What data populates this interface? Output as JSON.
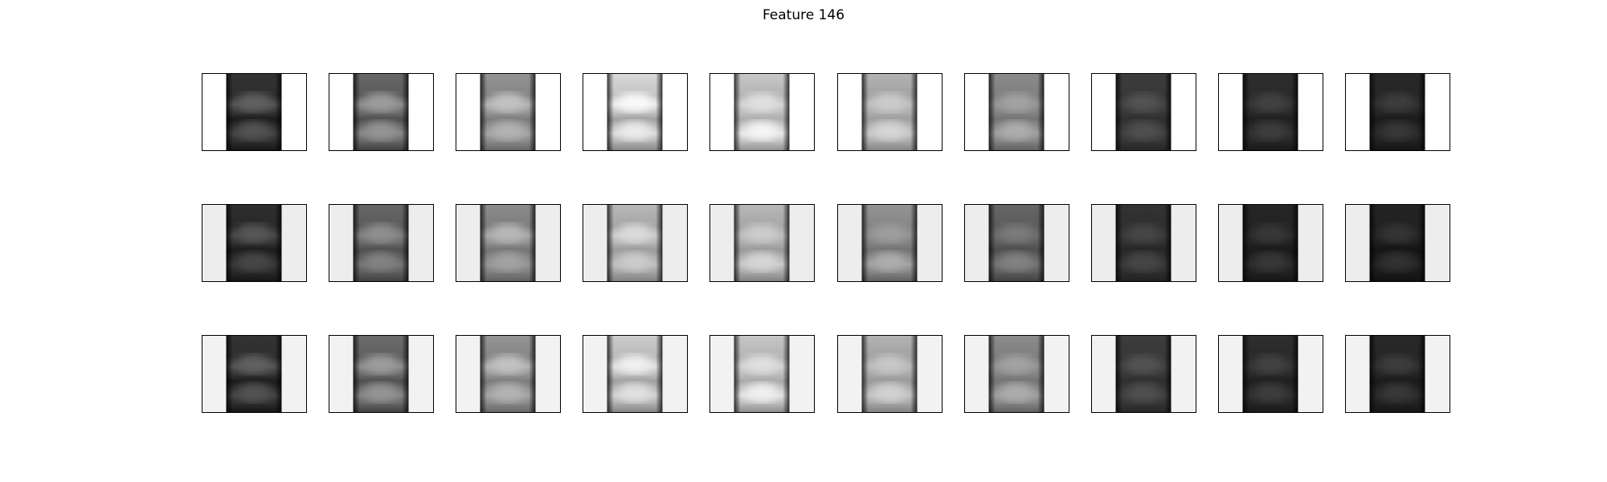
{
  "figure": {
    "title": "Feature 146",
    "rows": [
      {
        "background": "#ffffff",
        "panels": [
          {
            "body": 0.1,
            "cap": 0.2,
            "glow": 0.32,
            "lower": 0.26
          },
          {
            "body": 0.3,
            "cap": 0.4,
            "glow": 0.55,
            "lower": 0.52
          },
          {
            "body": 0.48,
            "cap": 0.58,
            "glow": 0.7,
            "lower": 0.64
          },
          {
            "body": 0.62,
            "cap": 0.85,
            "glow": 0.92,
            "lower": 0.86
          },
          {
            "body": 0.68,
            "cap": 0.78,
            "glow": 0.82,
            "lower": 0.9
          },
          {
            "body": 0.62,
            "cap": 0.7,
            "glow": 0.74,
            "lower": 0.78
          },
          {
            "body": 0.45,
            "cap": 0.55,
            "glow": 0.58,
            "lower": 0.62
          },
          {
            "body": 0.18,
            "cap": 0.24,
            "glow": 0.26,
            "lower": 0.25
          },
          {
            "body": 0.12,
            "cap": 0.18,
            "glow": 0.2,
            "lower": 0.18
          },
          {
            "body": 0.1,
            "cap": 0.16,
            "glow": 0.18,
            "lower": 0.16
          }
        ]
      },
      {
        "background": "#ededed",
        "panels": [
          {
            "body": 0.1,
            "cap": 0.18,
            "glow": 0.28,
            "lower": 0.22
          },
          {
            "body": 0.3,
            "cap": 0.4,
            "glow": 0.5,
            "lower": 0.45
          },
          {
            "body": 0.45,
            "cap": 0.55,
            "glow": 0.66,
            "lower": 0.58
          },
          {
            "body": 0.6,
            "cap": 0.72,
            "glow": 0.8,
            "lower": 0.74
          },
          {
            "body": 0.6,
            "cap": 0.72,
            "glow": 0.74,
            "lower": 0.78
          },
          {
            "body": 0.45,
            "cap": 0.58,
            "glow": 0.56,
            "lower": 0.62
          },
          {
            "body": 0.3,
            "cap": 0.4,
            "glow": 0.42,
            "lower": 0.45
          },
          {
            "body": 0.15,
            "cap": 0.2,
            "glow": 0.22,
            "lower": 0.22
          },
          {
            "body": 0.1,
            "cap": 0.15,
            "glow": 0.16,
            "lower": 0.16
          },
          {
            "body": 0.08,
            "cap": 0.14,
            "glow": 0.15,
            "lower": 0.14
          }
        ]
      },
      {
        "background": "#f2f2f2",
        "panels": [
          {
            "body": 0.1,
            "cap": 0.2,
            "glow": 0.32,
            "lower": 0.26
          },
          {
            "body": 0.3,
            "cap": 0.42,
            "glow": 0.55,
            "lower": 0.52
          },
          {
            "body": 0.48,
            "cap": 0.58,
            "glow": 0.7,
            "lower": 0.64
          },
          {
            "body": 0.62,
            "cap": 0.8,
            "glow": 0.88,
            "lower": 0.82
          },
          {
            "body": 0.66,
            "cap": 0.78,
            "glow": 0.82,
            "lower": 0.88
          },
          {
            "body": 0.6,
            "cap": 0.7,
            "glow": 0.72,
            "lower": 0.76
          },
          {
            "body": 0.45,
            "cap": 0.55,
            "glow": 0.58,
            "lower": 0.62
          },
          {
            "body": 0.18,
            "cap": 0.24,
            "glow": 0.26,
            "lower": 0.25
          },
          {
            "body": 0.12,
            "cap": 0.18,
            "glow": 0.2,
            "lower": 0.18
          },
          {
            "body": 0.1,
            "cap": 0.16,
            "glow": 0.18,
            "lower": 0.16
          }
        ]
      }
    ]
  }
}
